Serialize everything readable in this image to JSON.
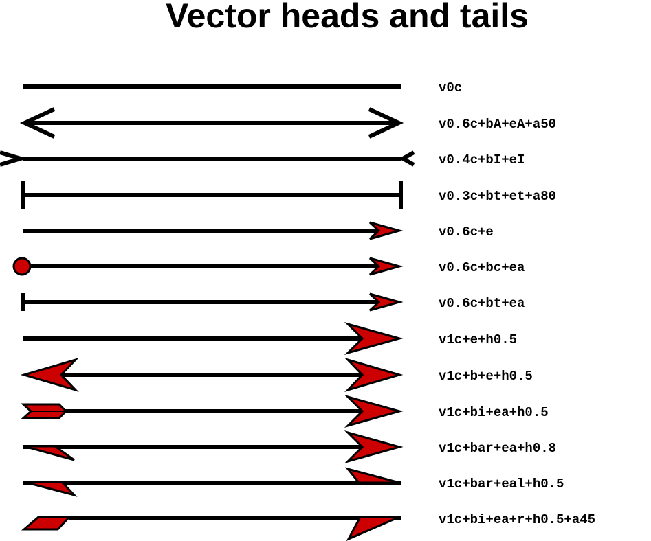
{
  "title": "Vector heads and tails",
  "head_fill_color": "#cc0000",
  "rows": [
    {
      "label": "v0c"
    },
    {
      "label": "v0.6c+bA+eA+a50"
    },
    {
      "label": "v0.4c+bI+eI"
    },
    {
      "label": "v0.3c+bt+et+a80"
    },
    {
      "label": "v0.6c+e"
    },
    {
      "label": "v0.6c+bc+ea"
    },
    {
      "label": "v0.6c+bt+ea"
    },
    {
      "label": "v1c+e+h0.5"
    },
    {
      "label": "v1c+b+e+h0.5"
    },
    {
      "label": "v1c+bi+ea+h0.5"
    },
    {
      "label": "v1c+bar+ea+h0.8"
    },
    {
      "label": "v1c+bar+eal+h0.5"
    },
    {
      "label": "v1c+bi+ea+r+h0.5+a45"
    }
  ]
}
